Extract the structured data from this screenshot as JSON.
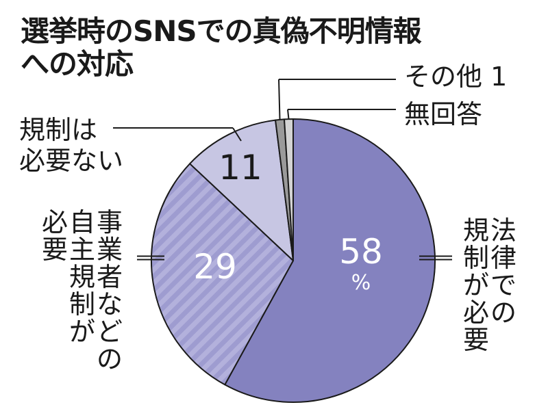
{
  "title_line1": "選挙時のSNSでの真偽不明情報",
  "title_line2": "への対応",
  "chart_data": {
    "type": "pie",
    "title": "選挙時のSNSでの真偽不明情報への対応",
    "unit": "%",
    "slices": [
      {
        "label": "法律での規制が必要",
        "value": 58,
        "value_label": "58",
        "color": "#8482bf",
        "pattern": "solid"
      },
      {
        "label": "事業者などの自主規制が必要",
        "value": 29,
        "value_label": "29",
        "color": "#9e9cd0",
        "pattern": "stripes"
      },
      {
        "label": "規制は必要ない",
        "value": 11,
        "value_label": "11",
        "color": "#c7c6e3",
        "pattern": "solid"
      },
      {
        "label": "その他",
        "value": 1,
        "value_label": "1",
        "color": "#9a9a9a",
        "pattern": "solid"
      },
      {
        "label": "無回答",
        "value": 1,
        "value_label": "",
        "color": "#d4d4d4",
        "pattern": "solid"
      }
    ]
  },
  "labels": {
    "houritsu": [
      "法律での",
      "規制が必要"
    ],
    "jishu": [
      "事業者などの",
      "自主規制が",
      "必要"
    ],
    "fuyou": [
      "規制は",
      "必要ない"
    ],
    "sonota": "その他 1",
    "mukaitou": "無回答",
    "pct_sign": "%"
  }
}
